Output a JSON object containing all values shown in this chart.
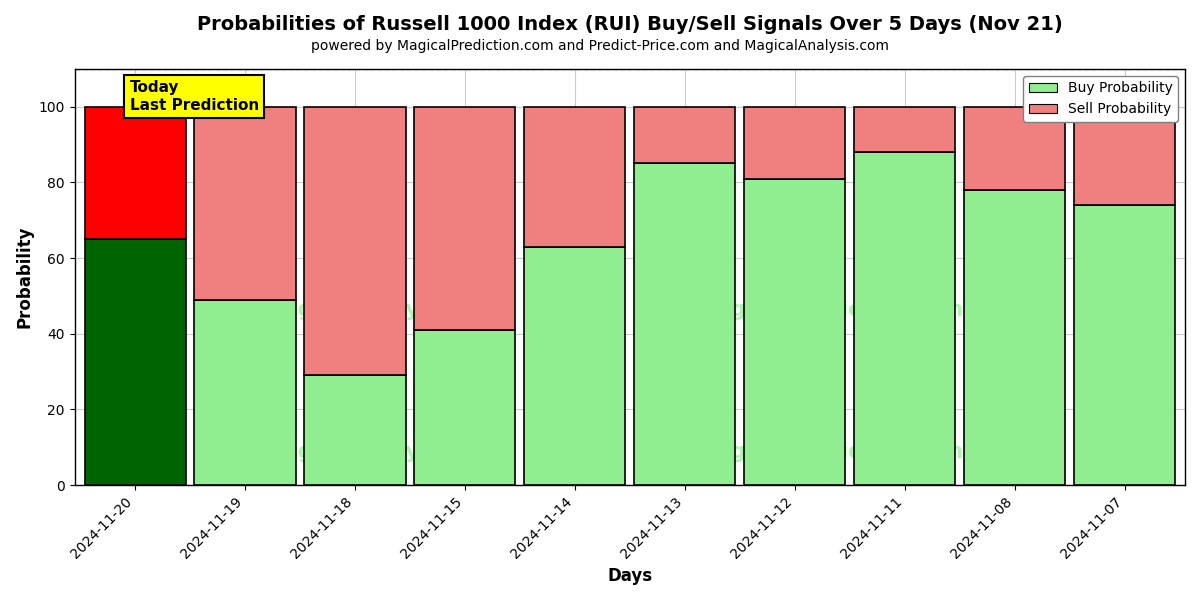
{
  "title": "Probabilities of Russell 1000 Index (RUI) Buy/Sell Signals Over 5 Days (Nov 21)",
  "subtitle": "powered by MagicalPrediction.com and Predict-Price.com and MagicalAnalysis.com",
  "xlabel": "Days",
  "ylabel": "Probability",
  "dates": [
    "2024-11-20",
    "2024-11-19",
    "2024-11-18",
    "2024-11-15",
    "2024-11-14",
    "2024-11-13",
    "2024-11-12",
    "2024-11-11",
    "2024-11-08",
    "2024-11-07"
  ],
  "buy_probs": [
    65,
    49,
    29,
    41,
    63,
    85,
    81,
    88,
    78,
    74
  ],
  "sell_probs": [
    35,
    51,
    71,
    59,
    37,
    15,
    19,
    12,
    22,
    26
  ],
  "buy_color_today": "#006400",
  "sell_color_today": "#FF0000",
  "buy_color_other": "#90EE90",
  "sell_color_other": "#F08080",
  "bar_edgecolor": "#000000",
  "bar_linewidth": 1.2,
  "ylim": [
    0,
    110
  ],
  "yticks": [
    0,
    20,
    40,
    60,
    80,
    100
  ],
  "dashed_line_y": 110,
  "grid_color": "#cccccc",
  "legend_buy_color": "#90EE90",
  "legend_sell_color": "#F08080",
  "today_label_bg": "#FFFF00",
  "today_label_text": "Today\nLast Prediction",
  "figsize": [
    12,
    6
  ],
  "dpi": 100,
  "bar_width": 0.92
}
